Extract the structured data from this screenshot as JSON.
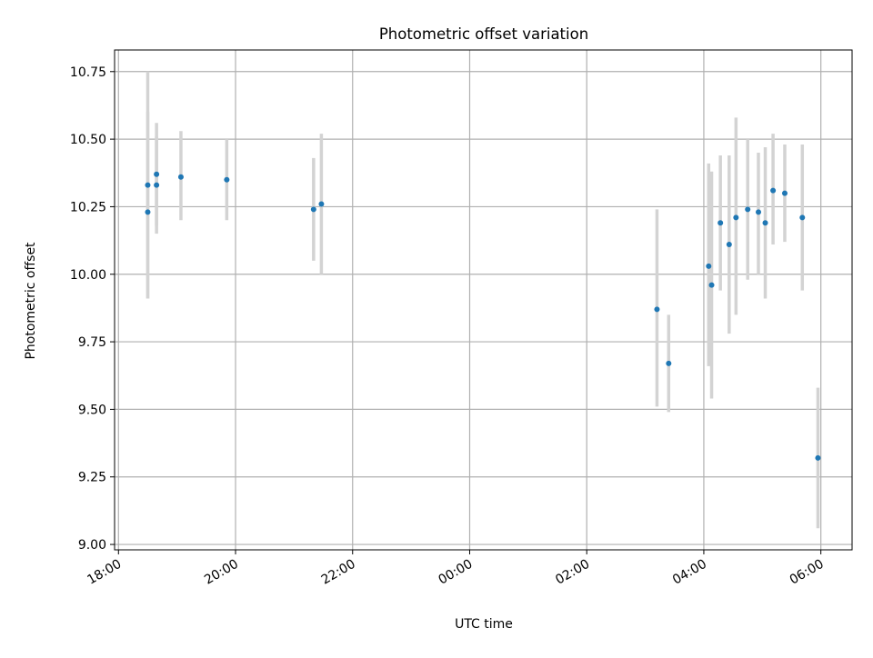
{
  "chart_data": {
    "type": "scatter",
    "title": "Photometric offset variation",
    "xlabel": "UTC time",
    "ylabel": "Photometric offset",
    "x_unit": "hour (continuous, 24+ = next day)",
    "xlim": [
      "17:56",
      "06:32"
    ],
    "ylim": [
      8.98,
      10.83
    ],
    "xticks": [
      "18:00",
      "20:00",
      "22:00",
      "00:00",
      "02:00",
      "04:00",
      "06:00"
    ],
    "yticks": [
      "9.00",
      "9.25",
      "9.50",
      "9.75",
      "10.00",
      "10.25",
      "10.50",
      "10.75"
    ],
    "grid": true,
    "points": [
      {
        "x": "18:30",
        "y": 10.33,
        "lo": 9.91,
        "hi": 10.75
      },
      {
        "x": "18:30",
        "y": 10.23,
        "lo": 9.91,
        "hi": 10.6
      },
      {
        "x": "18:39",
        "y": 10.37,
        "lo": 10.18,
        "hi": 10.56
      },
      {
        "x": "18:39",
        "y": 10.33,
        "lo": 10.15,
        "hi": 10.51
      },
      {
        "x": "19:04",
        "y": 10.36,
        "lo": 10.2,
        "hi": 10.53
      },
      {
        "x": "19:51",
        "y": 10.35,
        "lo": 10.2,
        "hi": 10.5
      },
      {
        "x": "21:20",
        "y": 10.24,
        "lo": 10.05,
        "hi": 10.43
      },
      {
        "x": "21:28",
        "y": 10.26,
        "lo": 10.0,
        "hi": 10.52
      },
      {
        "x": "03:12",
        "y": 9.87,
        "lo": 9.51,
        "hi": 10.24
      },
      {
        "x": "03:24",
        "y": 9.67,
        "lo": 9.49,
        "hi": 9.85
      },
      {
        "x": "04:05",
        "y": 10.03,
        "lo": 9.66,
        "hi": 10.41
      },
      {
        "x": "04:08",
        "y": 9.96,
        "lo": 9.54,
        "hi": 10.38
      },
      {
        "x": "04:17",
        "y": 10.19,
        "lo": 9.94,
        "hi": 10.44
      },
      {
        "x": "04:26",
        "y": 10.11,
        "lo": 9.78,
        "hi": 10.44
      },
      {
        "x": "04:33",
        "y": 10.21,
        "lo": 9.85,
        "hi": 10.58
      },
      {
        "x": "04:45",
        "y": 10.24,
        "lo": 9.98,
        "hi": 10.5
      },
      {
        "x": "04:56",
        "y": 10.23,
        "lo": 10.0,
        "hi": 10.45
      },
      {
        "x": "05:03",
        "y": 10.19,
        "lo": 9.91,
        "hi": 10.47
      },
      {
        "x": "05:11",
        "y": 10.31,
        "lo": 10.11,
        "hi": 10.52
      },
      {
        "x": "05:23",
        "y": 10.3,
        "lo": 10.12,
        "hi": 10.48
      },
      {
        "x": "05:41",
        "y": 10.21,
        "lo": 9.94,
        "hi": 10.48
      },
      {
        "x": "05:57",
        "y": 9.32,
        "lo": 9.06,
        "hi": 9.58
      }
    ],
    "colors": {
      "marker": "#1f77b4",
      "errorbar": "#d3d3d3",
      "grid": "#b0b0b0",
      "axes": "#000000"
    }
  }
}
